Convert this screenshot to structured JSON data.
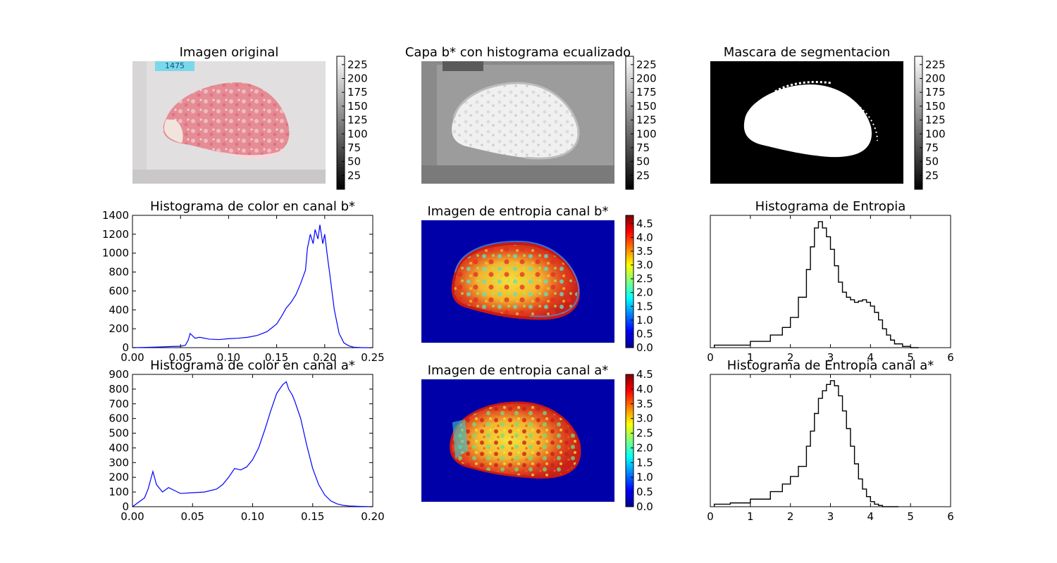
{
  "titles": {
    "orig": "Imagen original",
    "beq": "Capa b* con histograma ecualizado",
    "mask": "Mascara de segmentacion",
    "ent_b": "Imagen de entropia canal b*",
    "ent_a": "Imagen de entropia canal a*"
  },
  "sample_label": "1475",
  "colors": {
    "histogram_line": "#0000ff",
    "step_line": "#000000",
    "tissue_pink": "#e58c95",
    "label_cyan": "#7ad9e8",
    "background_gray": "#d6d3d4"
  },
  "colorbars": {
    "gray": {
      "colormap": "gray",
      "ticks": [
        "25",
        "50",
        "75",
        "100",
        "125",
        "150",
        "175",
        "200",
        "225"
      ],
      "range": [
        0,
        240
      ]
    },
    "ent_b": {
      "colormap": "jet",
      "ticks": [
        "0.0",
        "0.5",
        "1.0",
        "1.5",
        "2.0",
        "2.5",
        "3.0",
        "3.5",
        "4.0",
        "4.5"
      ],
      "range": [
        0,
        4.8
      ]
    },
    "ent_a": {
      "colormap": "jet",
      "ticks": [
        "0.0",
        "0.5",
        "1.0",
        "1.5",
        "2.0",
        "2.5",
        "3.0",
        "3.5",
        "4.0",
        "4.5"
      ],
      "range": [
        0,
        4.5
      ]
    }
  },
  "chart_data": [
    {
      "type": "line",
      "title": "Histograma de color en canal b*",
      "xlim": [
        0,
        0.25
      ],
      "ylim": [
        0,
        1400
      ],
      "xticks": [
        "0.00",
        "0.05",
        "0.10",
        "0.15",
        "0.20",
        "0.25"
      ],
      "yticks": [
        "0",
        "200",
        "400",
        "600",
        "800",
        "1000",
        "1200",
        "1400"
      ],
      "x": [
        0,
        0.01,
        0.02,
        0.03,
        0.04,
        0.05,
        0.055,
        0.058,
        0.06,
        0.065,
        0.07,
        0.08,
        0.09,
        0.1,
        0.11,
        0.12,
        0.13,
        0.14,
        0.15,
        0.155,
        0.16,
        0.165,
        0.17,
        0.175,
        0.18,
        0.182,
        0.185,
        0.188,
        0.19,
        0.193,
        0.195,
        0.198,
        0.2,
        0.203,
        0.205,
        0.21,
        0.215,
        0.22,
        0.225,
        0.23,
        0.24,
        0.25
      ],
      "y": [
        0,
        2,
        5,
        8,
        12,
        15,
        25,
        80,
        150,
        100,
        110,
        90,
        85,
        95,
        100,
        110,
        130,
        170,
        250,
        330,
        420,
        480,
        560,
        680,
        820,
        1050,
        1200,
        1100,
        1250,
        1150,
        1300,
        1100,
        1200,
        950,
        800,
        400,
        150,
        50,
        20,
        5,
        0,
        0
      ]
    },
    {
      "type": "line",
      "title": "Histograma de color en canal a*",
      "xlim": [
        0,
        0.2
      ],
      "ylim": [
        0,
        900
      ],
      "xticks": [
        "0.00",
        "0.05",
        "0.10",
        "0.15",
        "0.20"
      ],
      "yticks": [
        "0",
        "100",
        "200",
        "300",
        "400",
        "500",
        "600",
        "700",
        "800",
        "900"
      ],
      "x": [
        0,
        0.005,
        0.01,
        0.013,
        0.015,
        0.017,
        0.02,
        0.025,
        0.03,
        0.035,
        0.04,
        0.05,
        0.06,
        0.07,
        0.075,
        0.08,
        0.085,
        0.09,
        0.095,
        0.1,
        0.105,
        0.11,
        0.115,
        0.12,
        0.125,
        0.128,
        0.13,
        0.133,
        0.135,
        0.14,
        0.145,
        0.15,
        0.155,
        0.16,
        0.165,
        0.17,
        0.175,
        0.18,
        0.19,
        0.2
      ],
      "y": [
        0,
        30,
        60,
        120,
        180,
        240,
        150,
        100,
        130,
        110,
        90,
        95,
        100,
        120,
        150,
        200,
        260,
        250,
        270,
        320,
        400,
        520,
        650,
        770,
        830,
        850,
        800,
        760,
        720,
        600,
        420,
        260,
        150,
        80,
        40,
        20,
        10,
        5,
        2,
        0
      ]
    },
    {
      "type": "histogram",
      "title": "Histograma de Entropia",
      "xlim": [
        0,
        6
      ],
      "xticks": [
        "0",
        "1",
        "2",
        "3",
        "4",
        "5",
        "6"
      ],
      "x": [
        0.1,
        0.5,
        1.0,
        1.5,
        1.8,
        2.0,
        2.2,
        2.4,
        2.5,
        2.6,
        2.7,
        2.8,
        2.9,
        3.0,
        3.1,
        3.2,
        3.3,
        3.4,
        3.5,
        3.6,
        3.7,
        3.8,
        3.9,
        4.0,
        4.1,
        4.2,
        4.3,
        4.4,
        4.5,
        4.6,
        4.8,
        5.0
      ],
      "y": [
        2,
        2,
        5,
        10,
        16,
        24,
        40,
        62,
        80,
        95,
        100,
        95,
        88,
        78,
        65,
        52,
        44,
        40,
        38,
        36,
        37,
        38,
        36,
        33,
        28,
        22,
        15,
        10,
        6,
        3,
        1,
        0
      ]
    },
    {
      "type": "histogram",
      "title": "Histograma de Entropia canal a*",
      "xlim": [
        0,
        6
      ],
      "xticks": [
        "0",
        "1",
        "2",
        "3",
        "4",
        "5",
        "6"
      ],
      "x": [
        0.1,
        0.5,
        1.0,
        1.5,
        1.8,
        2.0,
        2.2,
        2.4,
        2.5,
        2.6,
        2.7,
        2.8,
        2.9,
        3.0,
        3.1,
        3.2,
        3.3,
        3.4,
        3.5,
        3.6,
        3.7,
        3.8,
        3.9,
        4.0,
        4.1,
        4.2,
        4.3,
        4.5
      ],
      "y": [
        2,
        3,
        6,
        12,
        18,
        24,
        32,
        48,
        60,
        74,
        86,
        92,
        97,
        100,
        96,
        88,
        76,
        62,
        48,
        34,
        22,
        14,
        8,
        4,
        2,
        1,
        0,
        0
      ]
    }
  ]
}
